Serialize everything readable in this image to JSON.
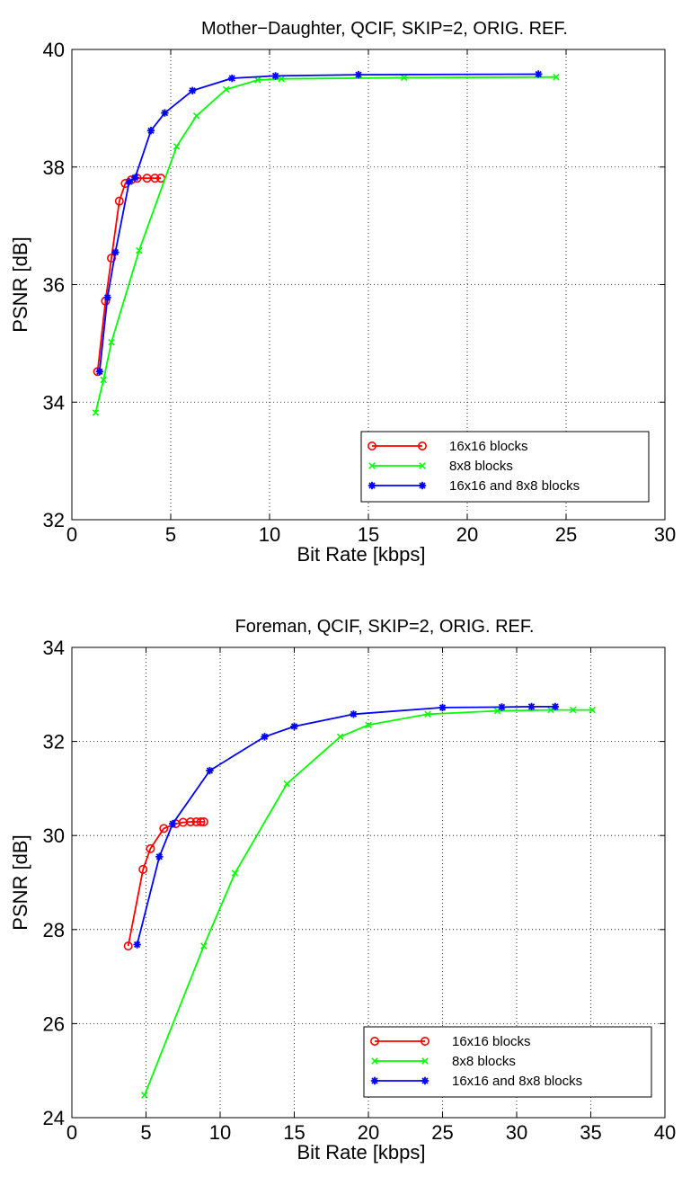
{
  "chart_data": [
    {
      "type": "line",
      "title": "Mother−Daughter, QCIF, SKIP=2, ORIG. REF.",
      "xlabel": "Bit Rate [kbps]",
      "ylabel": "PSNR [dB]",
      "xlim": [
        0,
        30
      ],
      "ylim": [
        32,
        40
      ],
      "xticks": [
        0,
        5,
        10,
        15,
        20,
        25,
        30
      ],
      "yticks": [
        32,
        34,
        36,
        38,
        40
      ],
      "grid": true,
      "legend_position": "bottom-right",
      "series": [
        {
          "name": "16x16 blocks",
          "color": "#ff0000",
          "marker": "circle",
          "x": [
            1.3,
            1.7,
            2.0,
            2.4,
            2.7,
            3.0,
            3.3,
            3.8,
            4.2,
            4.5
          ],
          "y": [
            34.52,
            35.72,
            36.45,
            37.42,
            37.72,
            37.78,
            37.81,
            37.81,
            37.81,
            37.81
          ]
        },
        {
          "name": "8x8 blocks",
          "color": "#00ff00",
          "marker": "x",
          "x": [
            1.2,
            1.6,
            2.0,
            3.4,
            5.3,
            6.3,
            7.8,
            9.4,
            10.6,
            16.8,
            24.5
          ],
          "y": [
            33.82,
            34.38,
            35.02,
            36.58,
            38.35,
            38.87,
            39.32,
            39.48,
            39.5,
            39.52,
            39.53
          ]
        },
        {
          "name": "16x16 and 8x8 blocks",
          "color": "#0000ff",
          "marker": "star",
          "x": [
            1.4,
            1.8,
            2.2,
            2.9,
            3.2,
            4.0,
            4.7,
            6.1,
            8.1,
            10.3,
            14.5,
            23.6
          ],
          "y": [
            34.52,
            35.78,
            36.55,
            37.75,
            37.82,
            38.62,
            38.92,
            39.3,
            39.51,
            39.55,
            39.57,
            39.58
          ]
        }
      ]
    },
    {
      "type": "line",
      "title": "Foreman, QCIF, SKIP=2, ORIG. REF.",
      "xlabel": "Bit Rate [kbps]",
      "ylabel": "PSNR [dB]",
      "xlim": [
        0,
        40
      ],
      "ylim": [
        24,
        34
      ],
      "xticks": [
        0,
        5,
        10,
        15,
        20,
        25,
        30,
        35,
        40
      ],
      "yticks": [
        24,
        26,
        28,
        30,
        32,
        34
      ],
      "grid": true,
      "legend_position": "bottom-right",
      "series": [
        {
          "name": "16x16 blocks",
          "color": "#ff0000",
          "marker": "circle",
          "x": [
            3.8,
            4.8,
            5.3,
            6.2,
            7.0,
            7.5,
            8.0,
            8.4,
            8.7,
            8.9
          ],
          "y": [
            27.65,
            29.28,
            29.72,
            30.15,
            30.25,
            30.28,
            30.29,
            30.29,
            30.29,
            30.29
          ]
        },
        {
          "name": "8x8 blocks",
          "color": "#00ff00",
          "marker": "x",
          "x": [
            4.9,
            8.9,
            11.0,
            14.5,
            18.1,
            20.0,
            24.0,
            28.7,
            32.3,
            33.8,
            35.1
          ],
          "y": [
            24.48,
            27.65,
            29.2,
            31.1,
            32.1,
            32.35,
            32.58,
            32.65,
            32.67,
            32.67,
            32.67
          ]
        },
        {
          "name": "16x16 and 8x8 blocks",
          "color": "#0000ff",
          "marker": "star",
          "x": [
            4.4,
            5.9,
            6.8,
            9.3,
            13.0,
            15.0,
            19.0,
            25.0,
            29.0,
            31.0,
            32.6
          ],
          "y": [
            27.68,
            29.55,
            30.25,
            31.38,
            32.1,
            32.32,
            32.58,
            32.72,
            32.73,
            32.74,
            32.74
          ]
        }
      ]
    }
  ]
}
